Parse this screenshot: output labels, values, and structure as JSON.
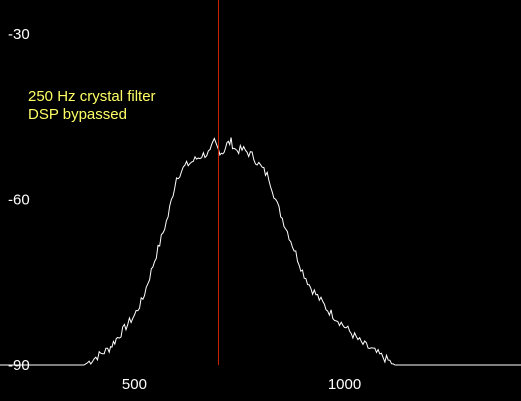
{
  "chart_data": {
    "type": "line",
    "title": "",
    "xlabel": "",
    "ylabel": "",
    "xlim": [
      180,
      1420
    ],
    "ylim": [
      -90,
      -30
    ],
    "x_ticks": [
      500,
      1000
    ],
    "y_ticks": [
      -30,
      -60,
      -90
    ],
    "x_tick_labels": [
      "500",
      "1000"
    ],
    "y_tick_labels": [
      "-30",
      "-60",
      "-90"
    ],
    "grid": false,
    "annotations": [
      "250 Hz crystal filter",
      "DSP bypassed"
    ],
    "marker_line": {
      "x": 700,
      "color": "#cc2200"
    },
    "colors": {
      "background": "#000000",
      "trace": "#ffffff",
      "text": "#ffffff",
      "annotation": "#ffff66",
      "marker": "#cc2200"
    },
    "series": [
      {
        "color": "#ffffff",
        "x": [
          180,
          250,
          300,
          350,
          380,
          400,
          420,
          440,
          450,
          460,
          480,
          500,
          520,
          540,
          560,
          580,
          600,
          620,
          640,
          660,
          680,
          690,
          700,
          710,
          720,
          730,
          740,
          760,
          780,
          800,
          820,
          840,
          860,
          880,
          900,
          920,
          940,
          960,
          980,
          1000,
          1020,
          1040,
          1060,
          1080,
          1100,
          1120,
          1200,
          1300,
          1420
        ],
        "y": [
          -90,
          -90,
          -90,
          -90,
          -90,
          -89,
          -88,
          -87,
          -86,
          -85,
          -83,
          -81,
          -78,
          -73,
          -68,
          -63,
          -56,
          -54,
          -53,
          -52,
          -51.5,
          -49.5,
          -51,
          -51.5,
          -50,
          -49.5,
          -51,
          -51,
          -52,
          -54,
          -56,
          -61,
          -65,
          -69,
          -73,
          -76,
          -78,
          -80,
          -81.5,
          -83,
          -84.5,
          -86,
          -87,
          -88,
          -89,
          -90,
          -90,
          -90,
          -90
        ]
      }
    ]
  }
}
